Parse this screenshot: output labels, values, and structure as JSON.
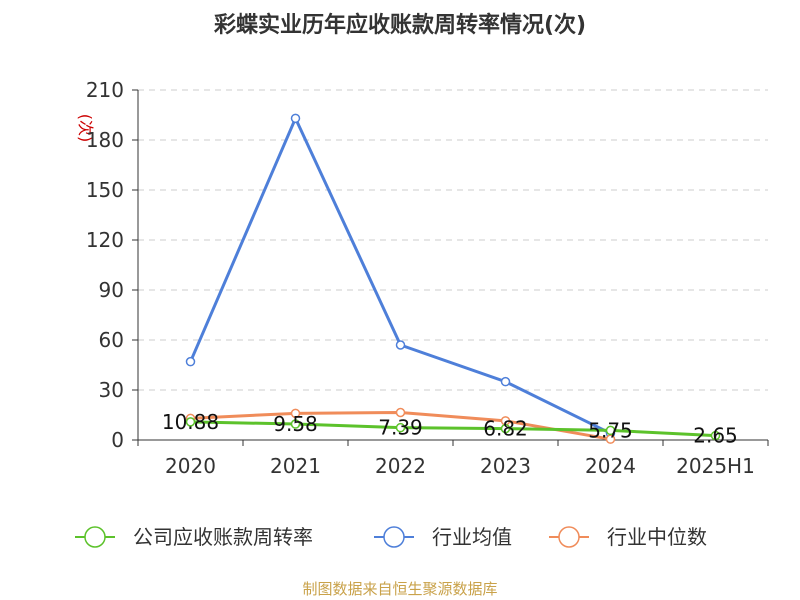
{
  "chart_data": {
    "type": "line",
    "title": "彩蝶实业历年应收账款周转率情况(次)",
    "ylabel": "(次)",
    "ylim": [
      0,
      210
    ],
    "yticks": [
      0,
      30,
      60,
      90,
      120,
      150,
      180,
      210
    ],
    "categories": [
      "2020",
      "2021",
      "2022",
      "2023",
      "2024",
      "2025H1"
    ],
    "grid": true,
    "legend_position": "bottom",
    "series": [
      {
        "name": "公司应收账款周转率",
        "color": "#5cc22b",
        "values": [
          10.88,
          9.58,
          7.39,
          6.82,
          5.75,
          2.65
        ],
        "labels": [
          "10.88",
          "9.58",
          "7.39",
          "6.82",
          "5.75",
          "2.65"
        ]
      },
      {
        "name": "行业均值",
        "color": "#4e7fd9",
        "values": [
          47,
          193,
          57,
          35,
          4,
          null
        ]
      },
      {
        "name": "行业中位数",
        "color": "#f08c5a",
        "values": [
          13,
          16,
          16.5,
          11.5,
          0.5,
          null
        ]
      }
    ]
  },
  "footer": {
    "source": "制图数据来自恒生聚源数据库"
  }
}
